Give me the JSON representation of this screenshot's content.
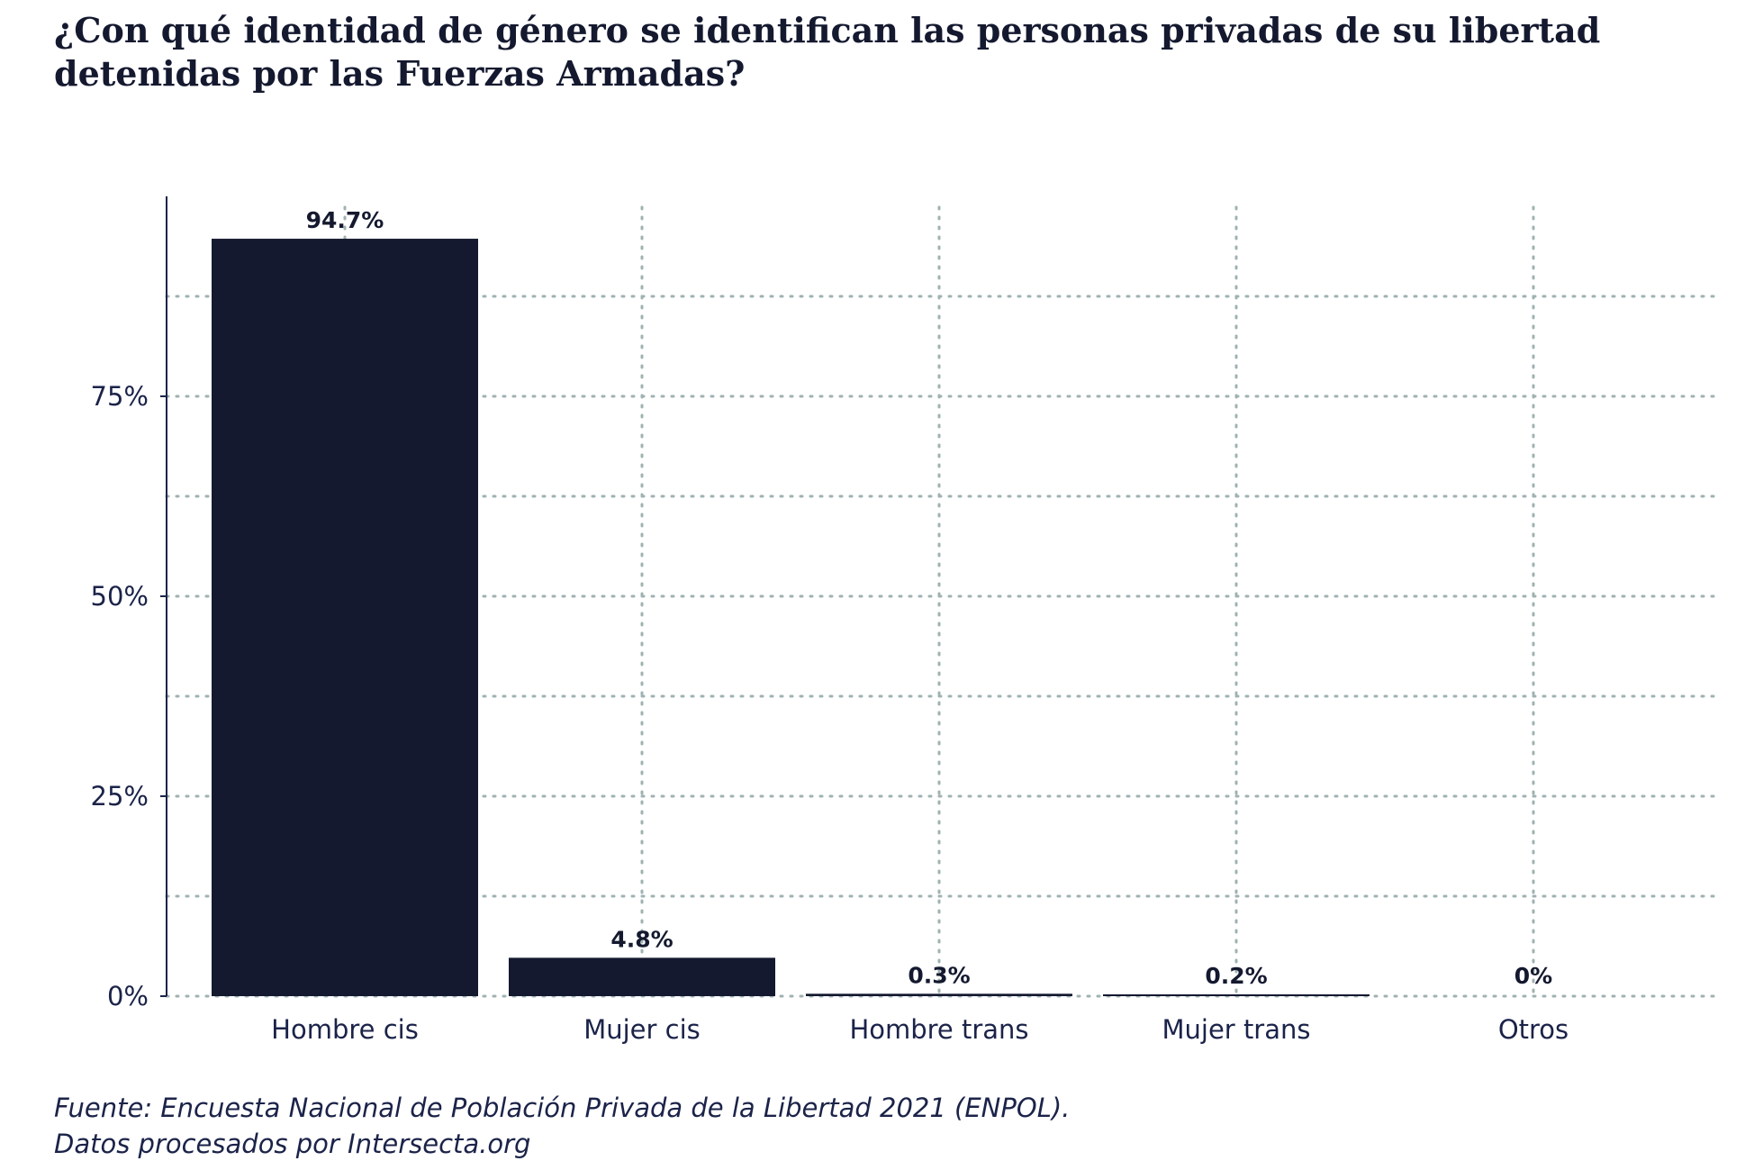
{
  "chart_data": {
    "type": "bar",
    "title": "¿Con qué identidad de género se identifican las personas privadas de su libertad detenidas por las Fuerzas Armadas?",
    "categories": [
      "Hombre cis",
      "Mujer cis",
      "Hombre trans",
      "Mujer trans",
      "Otros"
    ],
    "values": [
      94.7,
      4.8,
      0.3,
      0.2,
      0
    ],
    "value_labels": [
      "94.7%",
      "4.8%",
      "0.3%",
      "0.2%",
      "0%"
    ],
    "ylim": [
      0,
      100
    ],
    "yticks": [
      0,
      25,
      50,
      75
    ],
    "ytick_labels": [
      "0%",
      "25%",
      "50%",
      "75%"
    ],
    "xlabel": "",
    "ylabel": "",
    "grid": true,
    "bar_color": "#14192f",
    "grid_color": "#9fb2b2",
    "axis_color": "#1b2349"
  },
  "caption": {
    "line1": "Fuente: Encuesta Nacional de Población Privada de la Libertad 2021 (ENPOL).",
    "line2": "Datos procesados por Intersecta.org"
  }
}
